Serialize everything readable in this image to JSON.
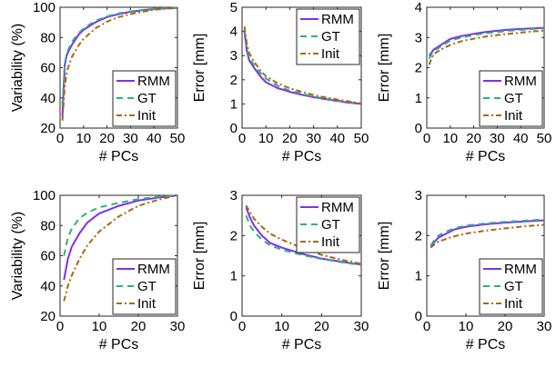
{
  "legend_labels": [
    "RMM",
    "GT",
    "Init"
  ],
  "series_colors": {
    "RMM": "#7E2FF0",
    "GT": "#2DAF7F",
    "Init": "#A8690F"
  },
  "chart_data": [
    {
      "type": "line",
      "xlabel": "# PCs",
      "ylabel": "Variability (%)",
      "xlim": [
        0,
        50
      ],
      "ylim": [
        20,
        100
      ],
      "xticks": [
        0,
        10,
        20,
        30,
        40,
        50
      ],
      "yticks": [
        20,
        40,
        60,
        80,
        100
      ],
      "legend_position": "bottom-right",
      "grid": false,
      "x": [
        1,
        2,
        3,
        5,
        8,
        10,
        15,
        20,
        25,
        30,
        35,
        40,
        45,
        50
      ],
      "series": [
        {
          "name": "RMM",
          "values": [
            28,
            62,
            69,
            75,
            82,
            85,
            90,
            93.5,
            95.5,
            97,
            98,
            98.8,
            99.3,
            99.6
          ]
        },
        {
          "name": "GT",
          "values": [
            35,
            63,
            70,
            77,
            83,
            86,
            91,
            94,
            96,
            97.3,
            98.2,
            99,
            99.4,
            99.7
          ]
        },
        {
          "name": "Init",
          "values": [
            25,
            48,
            58,
            67,
            75,
            79,
            86,
            90.5,
            93.5,
            95.5,
            97,
            98.3,
            99,
            99.5
          ]
        }
      ]
    },
    {
      "type": "line",
      "xlabel": "# PCs",
      "ylabel": "Error [mm]",
      "xlim": [
        0,
        50
      ],
      "ylim": [
        0,
        5
      ],
      "xticks": [
        0,
        10,
        20,
        30,
        40,
        50
      ],
      "yticks": [
        0,
        1,
        2,
        3,
        4,
        5
      ],
      "legend_position": "top-right",
      "grid": false,
      "x": [
        1,
        2,
        3,
        5,
        8,
        10,
        15,
        20,
        25,
        30,
        35,
        40,
        45,
        50
      ],
      "series": [
        {
          "name": "RMM",
          "values": [
            4.0,
            3.2,
            2.8,
            2.5,
            2.1,
            1.9,
            1.65,
            1.5,
            1.38,
            1.28,
            1.2,
            1.12,
            1.05,
            1.0
          ]
        },
        {
          "name": "GT",
          "values": [
            4.1,
            3.3,
            2.9,
            2.6,
            2.25,
            2.05,
            1.75,
            1.55,
            1.42,
            1.3,
            1.22,
            1.14,
            1.07,
            1.0
          ]
        },
        {
          "name": "Init",
          "values": [
            4.2,
            3.5,
            3.1,
            2.75,
            2.35,
            2.15,
            1.85,
            1.65,
            1.5,
            1.37,
            1.27,
            1.18,
            1.1,
            1.02
          ]
        }
      ]
    },
    {
      "type": "line",
      "xlabel": "# PCs",
      "ylabel": "Error [mm]",
      "xlim": [
        0,
        50
      ],
      "ylim": [
        0,
        4
      ],
      "xticks": [
        0,
        10,
        20,
        30,
        40,
        50
      ],
      "yticks": [
        0,
        1,
        2,
        3,
        4
      ],
      "legend_position": "bottom-right",
      "grid": false,
      "x": [
        1,
        2,
        3,
        5,
        8,
        10,
        15,
        20,
        25,
        30,
        35,
        40,
        45,
        50
      ],
      "series": [
        {
          "name": "RMM",
          "values": [
            2.4,
            2.5,
            2.6,
            2.7,
            2.85,
            2.95,
            3.05,
            3.12,
            3.18,
            3.22,
            3.26,
            3.28,
            3.3,
            3.32
          ]
        },
        {
          "name": "GT",
          "values": [
            2.3,
            2.45,
            2.55,
            2.65,
            2.8,
            2.9,
            3.0,
            3.08,
            3.14,
            3.18,
            3.22,
            3.25,
            3.28,
            3.3
          ]
        },
        {
          "name": "Init",
          "values": [
            2.1,
            2.3,
            2.45,
            2.55,
            2.68,
            2.75,
            2.88,
            2.96,
            3.03,
            3.08,
            3.12,
            3.16,
            3.2,
            3.22
          ]
        }
      ]
    },
    {
      "type": "line",
      "xlabel": "# PCs",
      "ylabel": "Variability (%)",
      "xlim": [
        0,
        30
      ],
      "ylim": [
        20,
        100
      ],
      "xticks": [
        0,
        10,
        20,
        30
      ],
      "yticks": [
        20,
        40,
        60,
        80,
        100
      ],
      "legend_position": "bottom-right",
      "grid": false,
      "x": [
        1,
        2,
        3,
        5,
        7,
        10,
        15,
        20,
        25,
        30
      ],
      "series": [
        {
          "name": "RMM",
          "values": [
            44,
            58,
            66,
            75,
            82,
            88,
            93,
            96.5,
            98.5,
            100
          ]
        },
        {
          "name": "GT",
          "values": [
            60,
            72,
            78,
            85,
            88.5,
            92,
            95,
            97.5,
            99,
            100
          ]
        },
        {
          "name": "Init",
          "values": [
            30,
            40,
            47,
            58,
            67,
            76,
            86,
            93,
            97,
            100
          ]
        }
      ]
    },
    {
      "type": "line",
      "xlabel": "# PCs",
      "ylabel": "Error [mm]",
      "xlim": [
        0,
        30
      ],
      "ylim": [
        0,
        3
      ],
      "xticks": [
        0,
        10,
        20,
        30
      ],
      "yticks": [
        0,
        1,
        2,
        3
      ],
      "legend_position": "top-right",
      "grid": false,
      "x": [
        1,
        2,
        3,
        5,
        7,
        10,
        15,
        20,
        25,
        30
      ],
      "series": [
        {
          "name": "RMM",
          "values": [
            2.7,
            2.45,
            2.25,
            2.0,
            1.82,
            1.7,
            1.55,
            1.43,
            1.35,
            1.28
          ]
        },
        {
          "name": "GT",
          "values": [
            2.5,
            2.25,
            2.1,
            1.9,
            1.76,
            1.65,
            1.52,
            1.42,
            1.34,
            1.27
          ]
        },
        {
          "name": "Init",
          "values": [
            2.75,
            2.58,
            2.42,
            2.22,
            2.05,
            1.9,
            1.7,
            1.52,
            1.4,
            1.3
          ]
        }
      ]
    },
    {
      "type": "line",
      "xlabel": "# PCs",
      "ylabel": "Error [mm]",
      "xlim": [
        0,
        30
      ],
      "ylim": [
        0,
        3
      ],
      "xticks": [
        0,
        10,
        20,
        30
      ],
      "yticks": [
        0,
        1,
        2,
        3
      ],
      "legend_position": "bottom-right",
      "grid": false,
      "x": [
        1,
        2,
        3,
        5,
        7,
        10,
        15,
        20,
        25,
        30
      ],
      "series": [
        {
          "name": "RMM",
          "values": [
            1.7,
            1.85,
            1.95,
            2.05,
            2.15,
            2.22,
            2.28,
            2.32,
            2.35,
            2.38
          ]
        },
        {
          "name": "GT",
          "values": [
            1.75,
            1.9,
            2.0,
            2.1,
            2.18,
            2.25,
            2.3,
            2.34,
            2.37,
            2.4
          ]
        },
        {
          "name": "Init",
          "values": [
            1.7,
            1.78,
            1.85,
            1.92,
            1.98,
            2.05,
            2.12,
            2.18,
            2.23,
            2.27
          ]
        }
      ]
    }
  ]
}
